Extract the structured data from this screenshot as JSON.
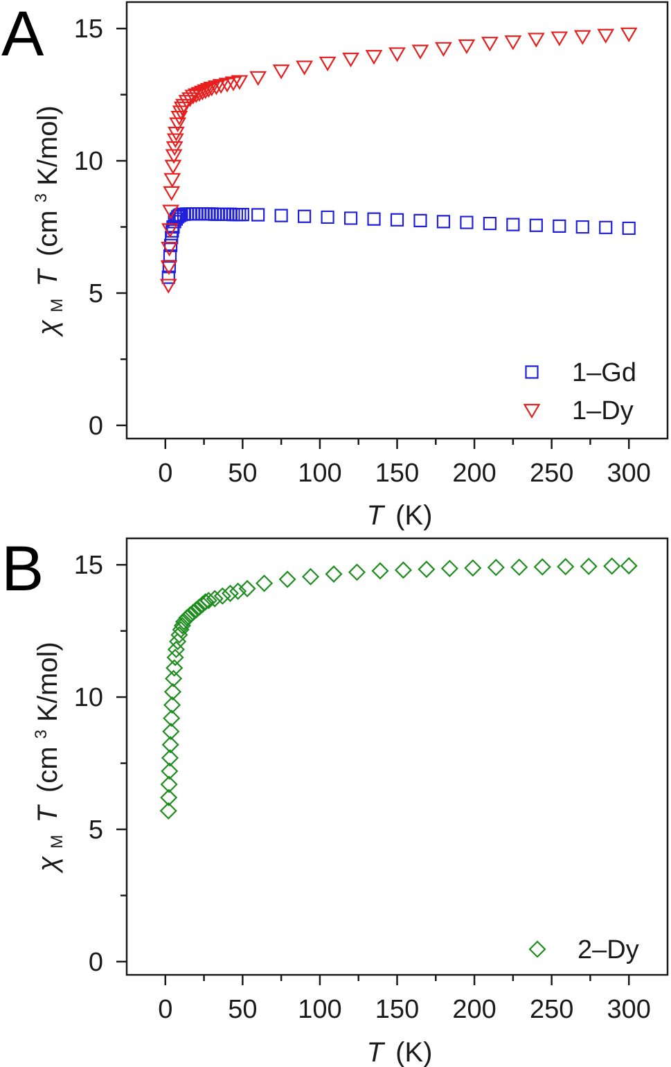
{
  "chart_data": [
    {
      "panel": "A",
      "type": "scatter",
      "xlabel": {
        "symbol": "T",
        "unit": "(K)"
      },
      "ylabel": {
        "chi": "χ",
        "sub": "M",
        "symbol": "T",
        "unit_pre": "(cm",
        "unit_sup": "3",
        "unit_post": "K/mol)"
      },
      "xlim": [
        -25,
        325
      ],
      "ylim": [
        -0.5,
        16
      ],
      "xticks": [
        0,
        50,
        100,
        150,
        200,
        250,
        300
      ],
      "yticks": [
        0,
        5,
        10,
        15
      ],
      "grid": false,
      "legend_position": "bottom-right",
      "series": [
        {
          "name": "1–Gd",
          "marker": "square",
          "color": "#1f1fdc",
          "points": [
            [
              2,
              5.6
            ],
            [
              2.5,
              6.0
            ],
            [
              3,
              6.4
            ],
            [
              3.5,
              6.8
            ],
            [
              4,
              7.1
            ],
            [
              4.5,
              7.35
            ],
            [
              5,
              7.5
            ],
            [
              6,
              7.7
            ],
            [
              7,
              7.8
            ],
            [
              8,
              7.88
            ],
            [
              9,
              7.93
            ],
            [
              10,
              7.96
            ],
            [
              12,
              7.98
            ],
            [
              14,
              7.99
            ],
            [
              16,
              7.99
            ],
            [
              18,
              7.99
            ],
            [
              20,
              7.99
            ],
            [
              22,
              7.99
            ],
            [
              24,
              7.99
            ],
            [
              26,
              7.99
            ],
            [
              28,
              7.99
            ],
            [
              30,
              7.99
            ],
            [
              32,
              7.98
            ],
            [
              34,
              7.98
            ],
            [
              36,
              7.98
            ],
            [
              38,
              7.98
            ],
            [
              40,
              7.98
            ],
            [
              42,
              7.98
            ],
            [
              44,
              7.97
            ],
            [
              46,
              7.97
            ],
            [
              48,
              7.97
            ],
            [
              50,
              7.97
            ],
            [
              60,
              7.96
            ],
            [
              75,
              7.93
            ],
            [
              90,
              7.9
            ],
            [
              105,
              7.87
            ],
            [
              120,
              7.83
            ],
            [
              135,
              7.8
            ],
            [
              150,
              7.77
            ],
            [
              165,
              7.74
            ],
            [
              180,
              7.7
            ],
            [
              195,
              7.67
            ],
            [
              210,
              7.63
            ],
            [
              225,
              7.59
            ],
            [
              240,
              7.56
            ],
            [
              255,
              7.53
            ],
            [
              270,
              7.5
            ],
            [
              285,
              7.48
            ],
            [
              300,
              7.45
            ]
          ]
        },
        {
          "name": "1–Dy",
          "marker": "triangle-down",
          "color": "#e61e1e",
          "points": [
            [
              2,
              5.3
            ],
            [
              2.3,
              6.0
            ],
            [
              2.6,
              6.7
            ],
            [
              3,
              7.4
            ],
            [
              3.5,
              8.1
            ],
            [
              4,
              8.8
            ],
            [
              4.5,
              9.3
            ],
            [
              5,
              9.8
            ],
            [
              5.5,
              10.2
            ],
            [
              6,
              10.5
            ],
            [
              6.5,
              10.8
            ],
            [
              7,
              11.05
            ],
            [
              8,
              11.4
            ],
            [
              9,
              11.65
            ],
            [
              10,
              11.85
            ],
            [
              11,
              12.0
            ],
            [
              12,
              12.1
            ],
            [
              14,
              12.25
            ],
            [
              16,
              12.35
            ],
            [
              18,
              12.45
            ],
            [
              20,
              12.5
            ],
            [
              22,
              12.55
            ],
            [
              24,
              12.6
            ],
            [
              26,
              12.65
            ],
            [
              28,
              12.7
            ],
            [
              30,
              12.75
            ],
            [
              33,
              12.8
            ],
            [
              36,
              12.85
            ],
            [
              40,
              12.9
            ],
            [
              44,
              12.95
            ],
            [
              48,
              13.0
            ],
            [
              60,
              13.15
            ],
            [
              75,
              13.4
            ],
            [
              90,
              13.55
            ],
            [
              105,
              13.7
            ],
            [
              120,
              13.85
            ],
            [
              135,
              13.95
            ],
            [
              150,
              14.05
            ],
            [
              165,
              14.15
            ],
            [
              180,
              14.25
            ],
            [
              195,
              14.35
            ],
            [
              210,
              14.45
            ],
            [
              225,
              14.5
            ],
            [
              240,
              14.6
            ],
            [
              255,
              14.65
            ],
            [
              270,
              14.7
            ],
            [
              285,
              14.75
            ],
            [
              300,
              14.8
            ]
          ]
        }
      ]
    },
    {
      "panel": "B",
      "type": "scatter",
      "xlabel": {
        "symbol": "T",
        "unit": "(K)"
      },
      "ylabel": {
        "chi": "χ",
        "sub": "M",
        "symbol": "T",
        "unit_pre": "(cm",
        "unit_sup": "3",
        "unit_post": "K/mol)"
      },
      "xlim": [
        -25,
        325
      ],
      "ylim": [
        -0.5,
        16
      ],
      "xticks": [
        0,
        50,
        100,
        150,
        200,
        250,
        300
      ],
      "yticks": [
        0,
        5,
        10,
        15
      ],
      "grid": false,
      "legend_position": "bottom-right",
      "series": [
        {
          "name": "2–Dy",
          "marker": "diamond",
          "color": "#1f8c1f",
          "points": [
            [
              2,
              5.7
            ],
            [
              2.2,
              6.2
            ],
            [
              2.4,
              6.7
            ],
            [
              2.7,
              7.2
            ],
            [
              3,
              7.7
            ],
            [
              3.3,
              8.2
            ],
            [
              3.6,
              8.7
            ],
            [
              4,
              9.2
            ],
            [
              4.4,
              9.7
            ],
            [
              4.8,
              10.2
            ],
            [
              5.3,
              10.7
            ],
            [
              5.8,
              11.1
            ],
            [
              6.4,
              11.5
            ],
            [
              7,
              11.8
            ],
            [
              8,
              12.1
            ],
            [
              9,
              12.35
            ],
            [
              10,
              12.55
            ],
            [
              11,
              12.7
            ],
            [
              12,
              12.85
            ],
            [
              14,
              13.0
            ],
            [
              16,
              13.1
            ],
            [
              18,
              13.2
            ],
            [
              20,
              13.3
            ],
            [
              22,
              13.4
            ],
            [
              24,
              13.5
            ],
            [
              26,
              13.6
            ],
            [
              28,
              13.65
            ],
            [
              32,
              13.72
            ],
            [
              37,
              13.82
            ],
            [
              42,
              13.92
            ],
            [
              47,
              14.0
            ],
            [
              53,
              14.1
            ],
            [
              64,
              14.3
            ],
            [
              79,
              14.45
            ],
            [
              94,
              14.55
            ],
            [
              109,
              14.65
            ],
            [
              124,
              14.72
            ],
            [
              139,
              14.77
            ],
            [
              154,
              14.8
            ],
            [
              169,
              14.83
            ],
            [
              184,
              14.86
            ],
            [
              199,
              14.88
            ],
            [
              214,
              14.9
            ],
            [
              229,
              14.91
            ],
            [
              244,
              14.92
            ],
            [
              259,
              14.93
            ],
            [
              274,
              14.94
            ],
            [
              289,
              14.95
            ],
            [
              300,
              14.96
            ]
          ]
        }
      ]
    }
  ]
}
